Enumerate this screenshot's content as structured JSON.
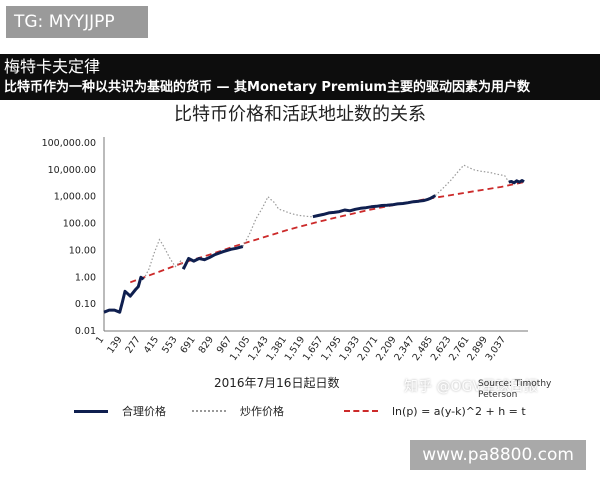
{
  "tg_badge": "TG: MYYJJPP",
  "banner": {
    "title": "梅特卡夫定律",
    "subtitle": "比特币作为一种以共识为基础的货币 — 其Monetary Premium主要的驱动因素为用户数"
  },
  "watermark": {
    "zhihu": "知乎 @OGV星球日报",
    "url": "www.pa8800.com"
  },
  "source_note": "Source: Timothy Peterson",
  "colors": {
    "fair_price": "#0f1f4f",
    "speculative_price": "#999999",
    "trend": "#cc2a2a",
    "banner": "#0d0d0d"
  },
  "chart_data": {
    "type": "line",
    "title": "比特币价格和活跃地址数的关系",
    "xlabel": "2016年7月16日起日数",
    "ylabel": "",
    "y_scale": "log",
    "ylim": [
      0.01,
      100000
    ],
    "xlim": [
      1,
      3175
    ],
    "y_ticks": [
      "100,000.00",
      "10,000.00",
      "1,000.00",
      "100.00",
      "10.00",
      "1.00",
      "0.10",
      "0.01"
    ],
    "x_ticks": [
      "1",
      "139",
      "277",
      "415",
      "553",
      "691",
      "829",
      "967",
      "1,105",
      "1,243",
      "1,381",
      "1,519",
      "1,657",
      "1,795",
      "1,933",
      "2,071",
      "2,209",
      "2,347",
      "2,485",
      "2,623",
      "2,761",
      "2,899",
      "3,037"
    ],
    "legend": [
      "合理价格",
      "炒作价格",
      "ln(p) = a(y-k)^2 + h = t"
    ],
    "series": [
      {
        "name": "合理价格",
        "x": [
          1,
          40,
          80,
          120,
          140,
          160,
          200,
          240,
          260,
          280,
          300,
          600,
          640,
          680,
          720,
          760,
          800,
          840,
          900,
          960,
          1000,
          1050,
          1580,
          1620,
          1660,
          1700,
          1740,
          1780,
          1820,
          1860,
          1900,
          1940,
          1980,
          2020,
          2060,
          2100,
          2140,
          2180,
          2220,
          2260,
          2300,
          2340,
          2380,
          2420,
          2450,
          2470,
          2490,
          2505,
          3060,
          3080,
          3100,
          3120,
          3140,
          3160,
          3175
        ],
        "y": [
          0.05,
          0.06,
          0.06,
          0.05,
          0.12,
          0.3,
          0.2,
          0.35,
          0.45,
          1.0,
          0.85,
          2.0,
          5.0,
          4.0,
          5.0,
          4.5,
          5.5,
          7.0,
          9.0,
          11.0,
          12.0,
          14.0,
          180,
          200,
          220,
          250,
          260,
          280,
          320,
          300,
          340,
          370,
          390,
          420,
          440,
          470,
          480,
          500,
          540,
          560,
          600,
          650,
          680,
          720,
          800,
          880,
          1000,
          1100,
          3500,
          3700,
          3300,
          3900,
          3500,
          4000,
          3600
        ]
      },
      {
        "name": "炒作价格",
        "x": [
          300,
          340,
          380,
          420,
          440,
          460,
          500,
          540,
          580,
          600,
          1050,
          1100,
          1150,
          1200,
          1240,
          1260,
          1290,
          1320,
          1360,
          1400,
          1440,
          1480,
          1520,
          1560,
          1580,
          2505,
          2560,
          2620,
          2680,
          2720,
          2760,
          2800,
          2840,
          2880,
          2920,
          2960,
          3000,
          3030,
          3060
        ],
        "y": [
          0.85,
          2.0,
          8.0,
          25.0,
          18.0,
          12.0,
          5.0,
          2.5,
          4.0,
          2.0,
          14.0,
          40,
          150,
          400,
          1000,
          800,
          600,
          350,
          300,
          250,
          220,
          200,
          190,
          180,
          180,
          1100,
          2000,
          4000,
          9000,
          15000,
          12000,
          10000,
          9000,
          8500,
          8000,
          7000,
          6500,
          6000,
          3500
        ]
      },
      {
        "name": "ln(p) = a(y-k)^2 + h = t",
        "x": [
          200,
          400,
          600,
          800,
          1000,
          1200,
          1400,
          1600,
          1800,
          2000,
          2200,
          2400,
          2600,
          2800,
          3000,
          3175
        ],
        "y": [
          0.65,
          1.5,
          3.5,
          7.0,
          15.0,
          30.0,
          60.0,
          110,
          190,
          320,
          500,
          760,
          1100,
          1600,
          2300,
          3500
        ]
      }
    ]
  }
}
